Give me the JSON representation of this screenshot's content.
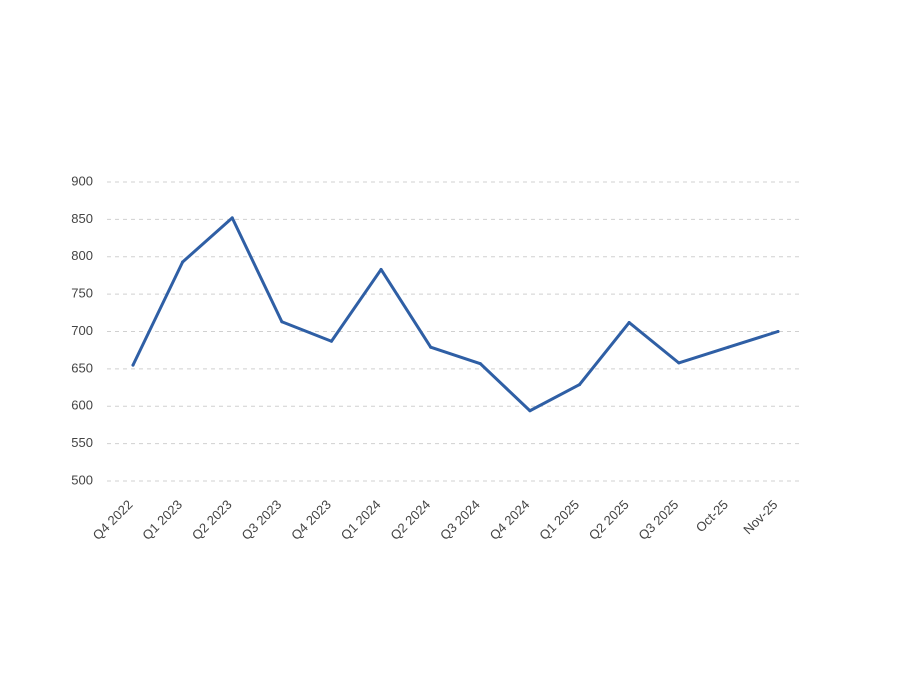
{
  "chart_data": {
    "type": "line",
    "title": "",
    "xlabel": "",
    "ylabel": "",
    "categories": [
      "Q4 2022",
      "Q1 2023",
      "Q2 2023",
      "Q3 2023",
      "Q4 2023",
      "Q1 2024",
      "Q2 2024",
      "Q3 2024",
      "Q4 2024",
      "Q1 2025",
      "Q2 2025",
      "Q3 2025",
      "Oct-25",
      "Nov-25"
    ],
    "series": [
      {
        "values": [
          655,
          793,
          852,
          713,
          687,
          783,
          679,
          657,
          594,
          629,
          712,
          658,
          679,
          700
        ]
      }
    ],
    "ylim": [
      500,
      900
    ],
    "yticks": [
      900,
      850,
      800,
      750,
      700,
      650,
      600,
      550,
      500
    ],
    "grid": true,
    "legend": "none",
    "colors": {
      "line": "#2f5fa5",
      "grid": "#d0d0d0",
      "text": "#444444"
    }
  }
}
